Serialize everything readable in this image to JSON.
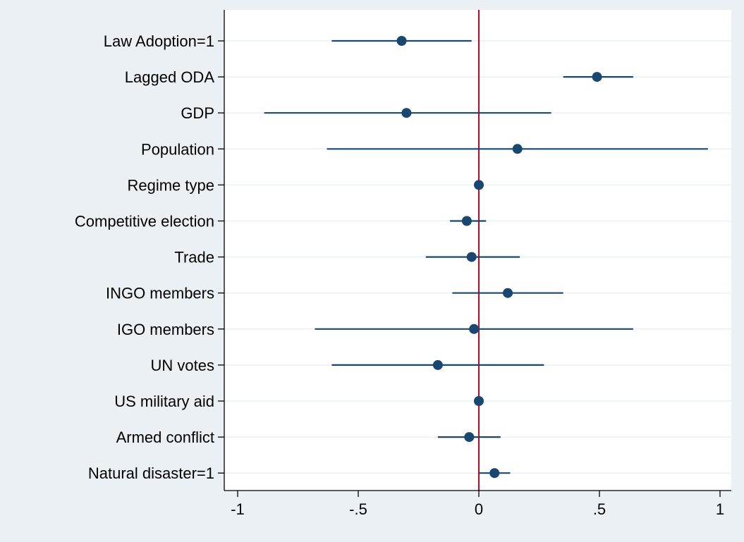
{
  "chart_data": {
    "type": "scatter",
    "subtype": "coefficient-plot",
    "title": "",
    "xlabel": "",
    "ylabel": "",
    "xlim": [
      -1.05,
      1.05
    ],
    "x_ticks": [
      -1,
      -0.5,
      0,
      0.5,
      1
    ],
    "x_tick_labels": [
      "-1",
      "-.5",
      "0",
      ".5",
      "1"
    ],
    "reference_line_x": 0,
    "grid": "horizontal",
    "legend": "none",
    "categories": [
      "Law Adoption=1",
      "Lagged ODA",
      "GDP",
      "Population",
      "Regime type",
      "Competitive election",
      "Trade",
      "INGO members",
      "IGO members",
      "UN votes",
      "US military aid",
      "Armed conflict",
      "Natural disaster=1"
    ],
    "estimates": [
      -0.32,
      0.49,
      -0.3,
      0.16,
      0.0,
      -0.05,
      -0.03,
      0.12,
      -0.02,
      -0.17,
      0.0,
      -0.04,
      0.065
    ],
    "ci_low": [
      -0.61,
      0.35,
      -0.89,
      -0.63,
      -0.005,
      -0.12,
      -0.22,
      -0.11,
      -0.68,
      -0.61,
      -0.01,
      -0.17,
      0.0
    ],
    "ci_high": [
      -0.03,
      0.64,
      0.3,
      0.95,
      0.005,
      0.03,
      0.17,
      0.35,
      0.64,
      0.27,
      0.01,
      0.09,
      0.13
    ],
    "colors": {
      "background": "#eaf0f4",
      "plot_background": "#ffffff",
      "marker": "#1a476f",
      "ci_line": "#1a476f",
      "reference_line": "#9e1b32",
      "grid": "#eaf0f4"
    }
  }
}
